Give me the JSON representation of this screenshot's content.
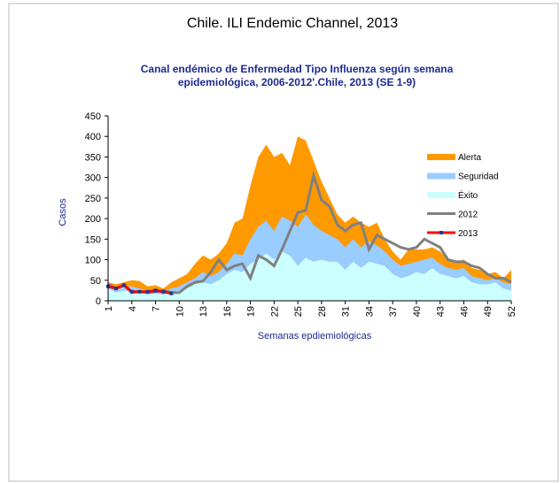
{
  "chart_data": {
    "type": "area",
    "title": "Chile. ILI Endemic Channel, 2013",
    "subtitle": [
      "Canal  endémico de Enfermedad Tipo Influenza según semana",
      "epidemiológica, 2006-2012'.Chile, 2013  (SE 1-9)"
    ],
    "x_label": "Semanas epdiemiológicas",
    "y_label": "Casos",
    "x": [
      1,
      2,
      3,
      4,
      5,
      6,
      7,
      8,
      9,
      10,
      11,
      12,
      13,
      14,
      15,
      16,
      17,
      18,
      19,
      20,
      21,
      22,
      23,
      24,
      25,
      26,
      27,
      28,
      29,
      30,
      31,
      32,
      33,
      34,
      35,
      36,
      37,
      38,
      39,
      40,
      41,
      42,
      43,
      44,
      45,
      46,
      47,
      48,
      49,
      50,
      51,
      52
    ],
    "xlim": [
      1,
      52
    ],
    "xticks": [
      1,
      4,
      7,
      10,
      13,
      16,
      19,
      22,
      25,
      28,
      31,
      34,
      37,
      40,
      43,
      46,
      49,
      52
    ],
    "ylim": [
      0,
      450
    ],
    "yticks": [
      0,
      50,
      100,
      150,
      200,
      250,
      300,
      350,
      400,
      450
    ],
    "series": [
      {
        "name": "Alerta",
        "kind": "area",
        "color": "#ff9900",
        "values": [
          45,
          40,
          45,
          50,
          48,
          35,
          38,
          30,
          45,
          55,
          65,
          90,
          110,
          100,
          115,
          140,
          190,
          200,
          280,
          350,
          380,
          350,
          360,
          330,
          400,
          390,
          340,
          290,
          250,
          210,
          190,
          205,
          190,
          180,
          190,
          150,
          120,
          100,
          125,
          125,
          125,
          130,
          120,
          100,
          95,
          100,
          80,
          75,
          65,
          70,
          55,
          75
        ]
      },
      {
        "name": "Seguridad",
        "kind": "area",
        "color": "#99ccff",
        "values": [
          35,
          30,
          35,
          35,
          30,
          25,
          28,
          25,
          30,
          35,
          45,
          55,
          70,
          60,
          70,
          90,
          115,
          110,
          150,
          180,
          195,
          170,
          205,
          195,
          180,
          210,
          185,
          170,
          160,
          150,
          130,
          150,
          130,
          145,
          135,
          120,
          100,
          85,
          90,
          95,
          100,
          105,
          90,
          80,
          75,
          80,
          60,
          55,
          50,
          55,
          45,
          40
        ]
      },
      {
        "name": "Éxito",
        "kind": "area",
        "color": "#ccffff",
        "values": [
          30,
          20,
          25,
          22,
          20,
          15,
          18,
          15,
          20,
          25,
          30,
          40,
          45,
          40,
          50,
          65,
          75,
          70,
          90,
          100,
          115,
          100,
          120,
          110,
          85,
          105,
          95,
          100,
          95,
          95,
          75,
          95,
          80,
          95,
          90,
          85,
          65,
          55,
          60,
          70,
          65,
          80,
          65,
          60,
          55,
          60,
          45,
          40,
          40,
          45,
          30,
          25
        ]
      },
      {
        "name": "2012",
        "kind": "line",
        "color": "#808080",
        "values": [
          40,
          30,
          38,
          20,
          22,
          20,
          22,
          25,
          20,
          20,
          35,
          45,
          48,
          70,
          100,
          75,
          85,
          90,
          55,
          110,
          100,
          85,
          125,
          170,
          215,
          220,
          305,
          245,
          230,
          185,
          170,
          185,
          190,
          125,
          160,
          150,
          140,
          130,
          125,
          130,
          150,
          140,
          130,
          100,
          95,
          95,
          85,
          80,
          65,
          55,
          55,
          45
        ]
      },
      {
        "name": "2013",
        "kind": "line",
        "color": "#ff0000",
        "marker_color": "#1f3a93",
        "values": [
          35,
          30,
          38,
          22,
          22,
          22,
          25,
          22,
          18,
          null,
          null,
          null,
          null,
          null,
          null,
          null,
          null,
          null,
          null,
          null,
          null,
          null,
          null,
          null,
          null,
          null,
          null,
          null,
          null,
          null,
          null,
          null,
          null,
          null,
          null,
          null,
          null,
          null,
          null,
          null,
          null,
          null,
          null,
          null,
          null,
          null,
          null,
          null,
          null,
          null,
          null,
          null
        ]
      }
    ]
  }
}
